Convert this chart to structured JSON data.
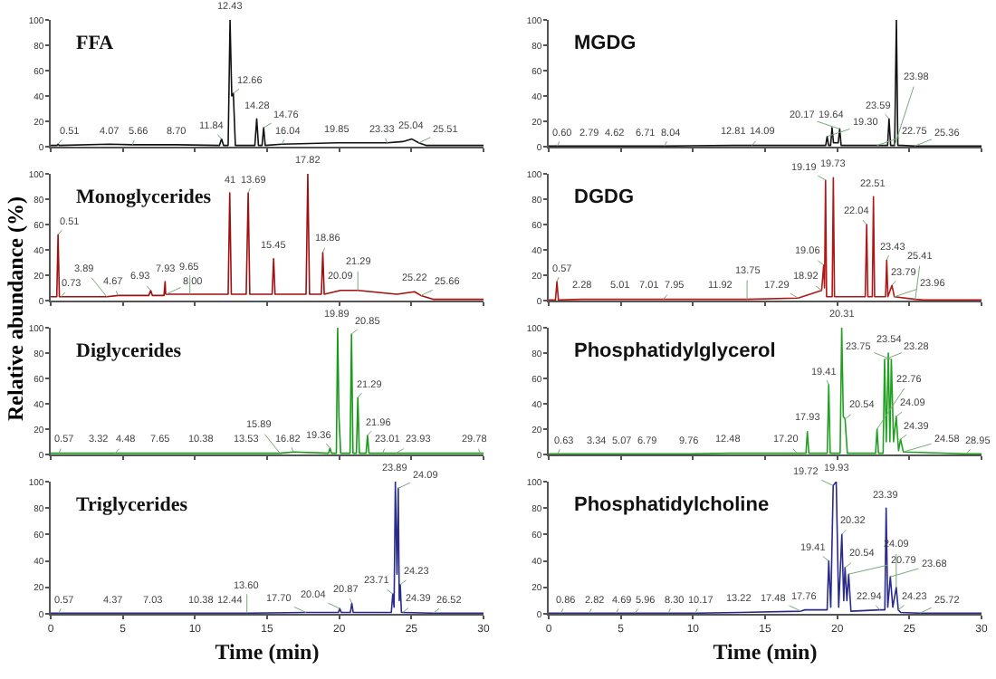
{
  "chart_data": [
    {
      "type": "line",
      "title": "FFA",
      "color": "#111111",
      "xlim": [
        0,
        30
      ],
      "ylim": [
        0,
        100
      ],
      "xticks": [
        0,
        5,
        10,
        15,
        20,
        25,
        30
      ],
      "yticks": [
        0,
        20,
        40,
        60,
        80,
        100
      ],
      "tick_labels": "y",
      "x": [
        0,
        0.43,
        0.51,
        0.59,
        4.07,
        5.66,
        8.7,
        11.7,
        11.84,
        11.98,
        12.3,
        12.43,
        12.55,
        12.66,
        12.8,
        14.15,
        14.28,
        14.4,
        14.65,
        14.76,
        14.87,
        16.04,
        19.85,
        23.33,
        24.4,
        25.04,
        25.51,
        26,
        30
      ],
      "values": [
        1,
        1,
        2,
        1,
        2,
        1.5,
        1.5,
        1,
        6,
        1,
        1,
        100,
        40,
        42,
        1,
        1,
        22,
        1,
        1,
        15,
        1,
        2,
        3,
        3,
        4,
        6,
        3,
        1,
        1
      ],
      "annotations": [
        {
          "text": "0.51",
          "x": 0.51,
          "y": 2
        },
        {
          "text": "4.07",
          "x": 4.07,
          "y": 2
        },
        {
          "text": "5.66",
          "x": 5.66,
          "y": 1.5
        },
        {
          "text": "8.70",
          "x": 8.7,
          "y": 1.5
        },
        {
          "text": "11.84",
          "x": 11.84,
          "y": 6
        },
        {
          "text": "12.43",
          "x": 12.43,
          "y": 100
        },
        {
          "text": "12.66",
          "x": 12.66,
          "y": 42
        },
        {
          "text": "14.28",
          "x": 14.28,
          "y": 22
        },
        {
          "text": "14.76",
          "x": 14.76,
          "y": 15
        },
        {
          "text": "16.04",
          "x": 16.04,
          "y": 2
        },
        {
          "text": "19.85",
          "x": 19.85,
          "y": 3
        },
        {
          "text": "23.33",
          "x": 23.33,
          "y": 3
        },
        {
          "text": "25.04",
          "x": 25.04,
          "y": 6
        },
        {
          "text": "25.51",
          "x": 25.51,
          "y": 3
        }
      ]
    },
    {
      "type": "line",
      "title": "MGDG",
      "color": "#111111",
      "xlim": [
        0,
        30
      ],
      "ylim": [
        0,
        100
      ],
      "xticks": [
        0,
        5,
        10,
        15,
        20,
        25,
        30
      ],
      "yticks": [
        0,
        20,
        40,
        60,
        80,
        100
      ],
      "tick_labels": "y",
      "x": [
        0,
        0.6,
        2.79,
        4.62,
        6.71,
        8.04,
        12.81,
        14.09,
        19.2,
        19.3,
        19.4,
        19.54,
        19.64,
        19.74,
        20.07,
        20.17,
        20.27,
        22.75,
        23.49,
        23.59,
        23.7,
        23.98,
        24.1,
        24.2,
        24.5,
        25.36,
        30
      ],
      "values": [
        0.5,
        0.5,
        0.5,
        0.5,
        0.5,
        0.5,
        1,
        1,
        1,
        8,
        1,
        1,
        15,
        3,
        3,
        14,
        1,
        1,
        1,
        22,
        1,
        1,
        100,
        1,
        1,
        0.5,
        0.5
      ],
      "annotations": [
        {
          "text": "0.60",
          "x": 0.6,
          "y": 0.5
        },
        {
          "text": "2.79",
          "x": 2.79,
          "y": 0.5
        },
        {
          "text": "4.62",
          "x": 4.62,
          "y": 0.5
        },
        {
          "text": "6.71",
          "x": 6.71,
          "y": 0.5
        },
        {
          "text": "8.04",
          "x": 8.04,
          "y": 0.5
        },
        {
          "text": "12.81",
          "x": 12.81,
          "y": 1
        },
        {
          "text": "14.09",
          "x": 14.09,
          "y": 1
        },
        {
          "text": "19.30",
          "x": 19.3,
          "y": 8
        },
        {
          "text": "19.64",
          "x": 19.64,
          "y": 15
        },
        {
          "text": "20.17",
          "x": 20.17,
          "y": 14
        },
        {
          "text": "22.75",
          "x": 22.75,
          "y": 1
        },
        {
          "text": "23.59",
          "x": 23.59,
          "y": 22
        },
        {
          "text": "23.98",
          "x": 23.98,
          "y": 1
        },
        {
          "text": "25.36",
          "x": 25.36,
          "y": 0.5
        }
      ]
    },
    {
      "type": "line",
      "title": "Monoglycerides",
      "ylabel": "Relative abundance (%)",
      "color": "#a01010",
      "xlim": [
        0,
        30
      ],
      "ylim": [
        0,
        100
      ],
      "xticks": [
        0,
        5,
        10,
        15,
        20,
        25,
        30
      ],
      "yticks": [
        0,
        20,
        40,
        60,
        80,
        100
      ],
      "tick_labels": "y",
      "x": [
        0,
        0.42,
        0.51,
        0.6,
        0.73,
        3.89,
        4.67,
        6.8,
        6.93,
        7.05,
        7.85,
        7.93,
        7.97,
        8.0,
        9.65,
        12.3,
        12.41,
        12.52,
        13.55,
        13.69,
        13.8,
        15.35,
        15.45,
        15.55,
        17.7,
        17.82,
        17.94,
        18.76,
        18.86,
        18.96,
        20.09,
        21.29,
        24,
        25.22,
        25.66,
        26.5,
        30
      ],
      "values": [
        3,
        3,
        52,
        3,
        3,
        3,
        4,
        4,
        8,
        4,
        4,
        15,
        5,
        5,
        5,
        5,
        85,
        5,
        5,
        85,
        5,
        5,
        33,
        5,
        5,
        100,
        5,
        5,
        38,
        5,
        8,
        8,
        5,
        7,
        4,
        1,
        1
      ],
      "annotations": [
        {
          "text": "0.51",
          "x": 0.51,
          "y": 52
        },
        {
          "text": "0.73",
          "x": 0.73,
          "y": 3
        },
        {
          "text": "3.89",
          "x": 3.89,
          "y": 3
        },
        {
          "text": "4.67",
          "x": 4.67,
          "y": 4
        },
        {
          "text": "6.93",
          "x": 6.93,
          "y": 8
        },
        {
          "text": "7.93",
          "x": 7.93,
          "y": 15
        },
        {
          "text": "8.00",
          "x": 8.0,
          "y": 5
        },
        {
          "text": "9.65",
          "x": 9.65,
          "y": 5
        },
        {
          "text": "41",
          "x": 12.41,
          "y": 85
        },
        {
          "text": "13.69",
          "x": 13.69,
          "y": 85
        },
        {
          "text": "15.45",
          "x": 15.45,
          "y": 33
        },
        {
          "text": "17.82",
          "x": 17.82,
          "y": 100
        },
        {
          "text": "18.86",
          "x": 18.86,
          "y": 38
        },
        {
          "text": "20.09",
          "x": 20.09,
          "y": 8
        },
        {
          "text": "21.29",
          "x": 21.29,
          "y": 8
        },
        {
          "text": "25.22",
          "x": 25.22,
          "y": 7
        },
        {
          "text": "25.66",
          "x": 25.66,
          "y": 4
        }
      ]
    },
    {
      "type": "line",
      "title": "DGDG",
      "color": "#b01818",
      "xlim": [
        0,
        30
      ],
      "ylim": [
        0,
        100
      ],
      "xticks": [
        0,
        5,
        10,
        15,
        20,
        25,
        30
      ],
      "yticks": [
        0,
        20,
        40,
        60,
        80,
        100
      ],
      "tick_labels": "y",
      "x": [
        0,
        0.47,
        0.57,
        0.67,
        2.28,
        5.01,
        7.01,
        7.95,
        11.92,
        13.75,
        17.29,
        18.92,
        19.06,
        19.12,
        19.19,
        19.26,
        19.65,
        19.73,
        19.81,
        21.94,
        22.04,
        22.12,
        22.43,
        22.51,
        22.59,
        23.35,
        23.43,
        23.51,
        23.79,
        23.96,
        25.41,
        26,
        30
      ],
      "values": [
        0.5,
        0.5,
        15,
        0.5,
        1,
        1,
        1,
        1,
        1,
        1,
        2,
        8,
        28,
        10,
        95,
        3,
        3,
        97,
        3,
        3,
        60,
        3,
        3,
        82,
        3,
        3,
        32,
        3,
        12,
        3,
        1,
        0.5,
        0.5
      ],
      "annotations": [
        {
          "text": "0.57",
          "x": 0.57,
          "y": 15
        },
        {
          "text": "2.28",
          "x": 2.28,
          "y": 1
        },
        {
          "text": "5.01",
          "x": 5.01,
          "y": 1
        },
        {
          "text": "7.01",
          "x": 7.01,
          "y": 1
        },
        {
          "text": "7.95",
          "x": 7.95,
          "y": 1
        },
        {
          "text": "11.92",
          "x": 11.92,
          "y": 1
        },
        {
          "text": "13.75",
          "x": 13.75,
          "y": 1
        },
        {
          "text": "17.29",
          "x": 17.29,
          "y": 2
        },
        {
          "text": "18.92",
          "x": 18.92,
          "y": 8
        },
        {
          "text": "19.06",
          "x": 19.06,
          "y": 28
        },
        {
          "text": "19.19",
          "x": 19.19,
          "y": 95
        },
        {
          "text": "19.73",
          "x": 19.73,
          "y": 97
        },
        {
          "text": "22.04",
          "x": 22.04,
          "y": 60
        },
        {
          "text": "22.51",
          "x": 22.51,
          "y": 82
        },
        {
          "text": "23.43",
          "x": 23.43,
          "y": 32
        },
        {
          "text": "23.79",
          "x": 23.79,
          "y": 12
        },
        {
          "text": "23.96",
          "x": 23.96,
          "y": 3
        },
        {
          "text": "25.41",
          "x": 25.41,
          "y": 1
        }
      ]
    },
    {
      "type": "line",
      "title": "Diglycerides",
      "color": "#1a9a1a",
      "xlim": [
        0,
        30
      ],
      "ylim": [
        0,
        100
      ],
      "xticks": [
        0,
        5,
        10,
        15,
        20,
        25,
        30
      ],
      "yticks": [
        0,
        20,
        40,
        60,
        80,
        100
      ],
      "tick_labels": "y",
      "x": [
        0,
        0.57,
        3.32,
        4.48,
        7.65,
        10.38,
        13.53,
        15.89,
        16.82,
        19.26,
        19.36,
        19.46,
        19.8,
        19.89,
        19.98,
        20.1,
        20.75,
        20.85,
        20.95,
        21.19,
        21.29,
        21.39,
        21.86,
        21.96,
        22.06,
        23.01,
        23.93,
        29.78,
        30
      ],
      "values": [
        1,
        1,
        1,
        1,
        1,
        1,
        1,
        1,
        2,
        1,
        5,
        1,
        1,
        100,
        30,
        1,
        1,
        95,
        1,
        1,
        45,
        1,
        1,
        15,
        1,
        1,
        1,
        1,
        1
      ],
      "annotations": [
        {
          "text": "0.57",
          "x": 0.57,
          "y": 1
        },
        {
          "text": "3.32",
          "x": 3.32,
          "y": 1
        },
        {
          "text": "4.48",
          "x": 4.48,
          "y": 1
        },
        {
          "text": "7.65",
          "x": 7.65,
          "y": 1
        },
        {
          "text": "10.38",
          "x": 10.38,
          "y": 1
        },
        {
          "text": "13.53",
          "x": 13.53,
          "y": 1
        },
        {
          "text": "15.89",
          "x": 15.89,
          "y": 1
        },
        {
          "text": "16.82",
          "x": 16.82,
          "y": 2
        },
        {
          "text": "19.36",
          "x": 19.36,
          "y": 5
        },
        {
          "text": "19.89",
          "x": 19.89,
          "y": 100
        },
        {
          "text": "20.85",
          "x": 20.85,
          "y": 95
        },
        {
          "text": "21.29",
          "x": 21.29,
          "y": 45
        },
        {
          "text": "21.96",
          "x": 21.96,
          "y": 15
        },
        {
          "text": "23.01",
          "x": 23.01,
          "y": 1
        },
        {
          "text": "23.93",
          "x": 23.93,
          "y": 1
        },
        {
          "text": "29.78",
          "x": 29.78,
          "y": 1
        }
      ]
    },
    {
      "type": "line",
      "title": "Phosphatidylglycerol",
      "color": "#22a022",
      "xlim": [
        0,
        30
      ],
      "ylim": [
        0,
        100
      ],
      "xticks": [
        0,
        5,
        10,
        15,
        20,
        25,
        30
      ],
      "yticks": [
        0,
        20,
        40,
        60,
        80,
        100
      ],
      "tick_labels": "y",
      "x": [
        0,
        0.63,
        3.34,
        5.07,
        6.79,
        9.76,
        12.48,
        17.2,
        17.83,
        17.93,
        18.03,
        19.31,
        19.41,
        19.51,
        20.2,
        20.31,
        20.42,
        20.54,
        20.7,
        22.66,
        22.76,
        22.86,
        23.18,
        23.28,
        23.4,
        23.54,
        23.65,
        23.75,
        23.9,
        24.09,
        24.25,
        24.39,
        24.58,
        28.95,
        30
      ],
      "values": [
        0.5,
        0.5,
        0.5,
        0.5,
        0.5,
        0.5,
        1,
        1,
        1,
        18,
        1,
        1,
        55,
        1,
        1,
        100,
        30,
        28,
        1,
        1,
        20,
        1,
        1,
        75,
        10,
        80,
        10,
        75,
        10,
        30,
        3,
        12,
        2,
        0.5,
        0.5
      ],
      "annotations": [
        {
          "text": "0.63",
          "x": 0.63,
          "y": 0.5
        },
        {
          "text": "3.34",
          "x": 3.34,
          "y": 0.5
        },
        {
          "text": "5.07",
          "x": 5.07,
          "y": 0.5
        },
        {
          "text": "6.79",
          "x": 6.79,
          "y": 0.5
        },
        {
          "text": "9.76",
          "x": 9.76,
          "y": 0.5
        },
        {
          "text": "12.48",
          "x": 12.48,
          "y": 1
        },
        {
          "text": "17.20",
          "x": 17.2,
          "y": 1
        },
        {
          "text": "17.93",
          "x": 17.93,
          "y": 18
        },
        {
          "text": "19.41",
          "x": 19.41,
          "y": 55
        },
        {
          "text": "20.31",
          "x": 20.31,
          "y": 100
        },
        {
          "text": "20.54",
          "x": 20.54,
          "y": 28
        },
        {
          "text": "22.76",
          "x": 22.76,
          "y": 20
        },
        {
          "text": "23.28",
          "x": 23.28,
          "y": 75
        },
        {
          "text": "23.54",
          "x": 23.54,
          "y": 80
        },
        {
          "text": "23.75",
          "x": 23.75,
          "y": 75
        },
        {
          "text": "24.09",
          "x": 24.09,
          "y": 30
        },
        {
          "text": "24.39",
          "x": 24.39,
          "y": 12
        },
        {
          "text": "24.58",
          "x": 24.58,
          "y": 2
        },
        {
          "text": "28.95",
          "x": 28.95,
          "y": 0.5
        }
      ]
    },
    {
      "type": "line",
      "title": "Triglycerides",
      "xlabel": "Time (min)",
      "color": "#2b2b8c",
      "xlim": [
        0,
        30
      ],
      "ylim": [
        0,
        100
      ],
      "xticks": [
        0,
        5,
        10,
        15,
        20,
        25,
        30
      ],
      "yticks": [
        0,
        20,
        40,
        60,
        80,
        100
      ],
      "x": [
        0,
        0.57,
        4.37,
        7.03,
        10.38,
        12.44,
        13.6,
        17.7,
        19.94,
        20.04,
        20.14,
        20.77,
        20.87,
        20.97,
        23.61,
        23.71,
        23.8,
        23.89,
        24.0,
        24.09,
        24.16,
        24.23,
        24.31,
        24.39,
        26.52,
        30
      ],
      "values": [
        0.5,
        0.5,
        0.5,
        0.5,
        0.5,
        0.5,
        0.5,
        1,
        1,
        4,
        1,
        1,
        8,
        1,
        1,
        15,
        5,
        100,
        30,
        95,
        10,
        22,
        1,
        1,
        0.5,
        0.5
      ],
      "annotations": [
        {
          "text": "0.57",
          "x": 0.57,
          "y": 0.5
        },
        {
          "text": "4.37",
          "x": 4.37,
          "y": 0.5
        },
        {
          "text": "7.03",
          "x": 7.03,
          "y": 0.5
        },
        {
          "text": "10.38",
          "x": 10.38,
          "y": 0.5
        },
        {
          "text": "12.44",
          "x": 12.44,
          "y": 0.5
        },
        {
          "text": "13.60",
          "x": 13.6,
          "y": 0.5
        },
        {
          "text": "17.70",
          "x": 17.7,
          "y": 1
        },
        {
          "text": "20.04",
          "x": 20.04,
          "y": 4
        },
        {
          "text": "20.87",
          "x": 20.87,
          "y": 8
        },
        {
          "text": "23.71",
          "x": 23.71,
          "y": 15
        },
        {
          "text": "23.89",
          "x": 23.89,
          "y": 100
        },
        {
          "text": "24.09",
          "x": 24.09,
          "y": 95
        },
        {
          "text": "24.23",
          "x": 24.23,
          "y": 22
        },
        {
          "text": "24.39",
          "x": 24.39,
          "y": 1
        },
        {
          "text": "26.52",
          "x": 26.52,
          "y": 0.5
        }
      ]
    },
    {
      "type": "line",
      "title": "Phosphatidylcholine",
      "xlabel": "Time (min)",
      "color": "#2b2b8c",
      "xlim": [
        0,
        30
      ],
      "ylim": [
        0,
        100
      ],
      "xticks": [
        0,
        5,
        10,
        15,
        20,
        25,
        30
      ],
      "yticks": [
        0,
        20,
        40,
        60,
        80,
        100
      ],
      "x": [
        0,
        0.86,
        2.82,
        4.69,
        5.96,
        8.3,
        10.17,
        13.22,
        17.48,
        17.76,
        19.3,
        19.41,
        19.55,
        19.72,
        19.93,
        20.1,
        20.32,
        20.45,
        20.54,
        20.67,
        20.79,
        20.95,
        22.94,
        23.3,
        23.39,
        23.5,
        23.68,
        23.85,
        24.09,
        24.23,
        24.4,
        25.72,
        30
      ],
      "values": [
        0.5,
        0.5,
        0.5,
        0.5,
        0.5,
        0.5,
        0.5,
        1,
        2,
        3,
        3,
        40,
        5,
        97,
        100,
        5,
        60,
        10,
        35,
        10,
        30,
        2,
        3,
        3,
        80,
        5,
        28,
        5,
        20,
        3,
        1,
        0.5,
        0.5
      ],
      "annotations": [
        {
          "text": "0.86",
          "x": 0.86,
          "y": 0.5
        },
        {
          "text": "2.82",
          "x": 2.82,
          "y": 0.5
        },
        {
          "text": "4.69",
          "x": 4.69,
          "y": 0.5
        },
        {
          "text": "5.96",
          "x": 5.96,
          "y": 0.5
        },
        {
          "text": "8.30",
          "x": 8.3,
          "y": 0.5
        },
        {
          "text": "10.17",
          "x": 10.17,
          "y": 0.5
        },
        {
          "text": "13.22",
          "x": 13.22,
          "y": 1
        },
        {
          "text": "17.48",
          "x": 17.48,
          "y": 2
        },
        {
          "text": "17.76",
          "x": 17.76,
          "y": 3
        },
        {
          "text": "19.41",
          "x": 19.41,
          "y": 40
        },
        {
          "text": "19.72",
          "x": 19.72,
          "y": 97
        },
        {
          "text": "19.93",
          "x": 19.93,
          "y": 100
        },
        {
          "text": "20.32",
          "x": 20.32,
          "y": 60
        },
        {
          "text": "20.54",
          "x": 20.54,
          "y": 35
        },
        {
          "text": "20.79",
          "x": 20.79,
          "y": 30
        },
        {
          "text": "22.94",
          "x": 22.94,
          "y": 3
        },
        {
          "text": "23.39",
          "x": 23.39,
          "y": 80
        },
        {
          "text": "23.68",
          "x": 23.68,
          "y": 28
        },
        {
          "text": "24.09",
          "x": 24.09,
          "y": 20
        },
        {
          "text": "24.23",
          "x": 24.23,
          "y": 3
        },
        {
          "text": "25.72",
          "x": 25.72,
          "y": 0.5
        }
      ]
    }
  ]
}
